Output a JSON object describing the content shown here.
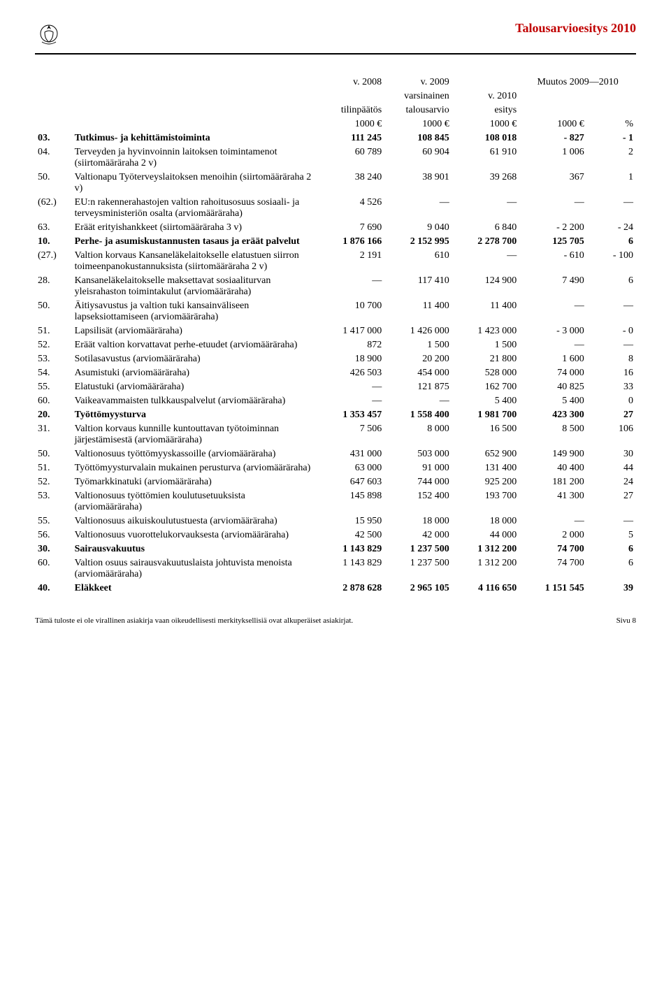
{
  "header": {
    "title": "Talousarvioesitys 2010",
    "title_color": "#c00000"
  },
  "table": {
    "col_headers": {
      "c1": [
        "v. 2008",
        "tilinpäätös",
        "1000 €"
      ],
      "c2": [
        "v. 2009",
        "varsinainen",
        "talousarvio",
        "1000 €"
      ],
      "c3": [
        "v. 2010",
        "esitys",
        "1000 €"
      ],
      "c4": [
        "Muutos 2009—2010"
      ],
      "c4a": "1000 €",
      "c4b": "%"
    },
    "rows": [
      {
        "code": "03.",
        "desc": "Tutkimus- ja kehittämistoiminta",
        "v": [
          "111 245",
          "108 845",
          "108 018",
          "- 827",
          "- 1"
        ],
        "bold": true
      },
      {
        "code": "04.",
        "desc": "Terveyden ja hyvinvoinnin laitoksen toimintamenot (siirtomääräraha 2 v)",
        "v": [
          "60 789",
          "60 904",
          "61 910",
          "1 006",
          "2"
        ]
      },
      {
        "code": "50.",
        "desc": "Valtionapu Työterveyslaitoksen menoihin (siirtomääräraha 2 v)",
        "v": [
          "38 240",
          "38 901",
          "39 268",
          "367",
          "1"
        ]
      },
      {
        "code": "(62.)",
        "desc": "EU:n rakennerahastojen valtion rahoitusosuus sosiaali- ja terveysministeriön osalta (arviomääräraha)",
        "v": [
          "4 526",
          "—",
          "—",
          "—",
          "—"
        ]
      },
      {
        "code": "63.",
        "desc": "Eräät erityishankkeet (siirtomääräraha 3 v)",
        "v": [
          "7 690",
          "9 040",
          "6 840",
          "- 2 200",
          "- 24"
        ]
      },
      {
        "code": "10.",
        "desc": "Perhe- ja asumiskustannusten tasaus ja eräät palvelut",
        "v": [
          "1 876 166",
          "2 152 995",
          "2 278 700",
          "125 705",
          "6"
        ],
        "bold": true
      },
      {
        "code": "(27.)",
        "desc": "Valtion korvaus Kansaneläkelaitokselle elatustuen siirron toimeenpanokustannuksista (siirtomääräraha 2 v)",
        "v": [
          "2 191",
          "610",
          "—",
          "- 610",
          "- 100"
        ]
      },
      {
        "code": "28.",
        "desc": "Kansaneläkelaitokselle maksettavat sosiaaliturvan yleisrahaston toimintakulut (arviomääräraha)",
        "v": [
          "—",
          "117 410",
          "124 900",
          "7 490",
          "6"
        ]
      },
      {
        "code": "50.",
        "desc": "Äitiysavustus ja valtion tuki kansainväliseen lapseksiottamiseen (arviomääräraha)",
        "v": [
          "10 700",
          "11 400",
          "11 400",
          "—",
          "—"
        ]
      },
      {
        "code": "51.",
        "desc": "Lapsilisät (arviomääräraha)",
        "v": [
          "1 417 000",
          "1 426 000",
          "1 423 000",
          "- 3 000",
          "- 0"
        ]
      },
      {
        "code": "52.",
        "desc": "Eräät valtion korvattavat perhe-etuudet (arviomääräraha)",
        "v": [
          "872",
          "1 500",
          "1 500",
          "—",
          "—"
        ]
      },
      {
        "code": "53.",
        "desc": "Sotilasavustus (arviomääräraha)",
        "v": [
          "18 900",
          "20 200",
          "21 800",
          "1 600",
          "8"
        ]
      },
      {
        "code": "54.",
        "desc": "Asumistuki (arviomääräraha)",
        "v": [
          "426 503",
          "454 000",
          "528 000",
          "74 000",
          "16"
        ]
      },
      {
        "code": "55.",
        "desc": "Elatustuki (arviomääräraha)",
        "v": [
          "—",
          "121 875",
          "162 700",
          "40 825",
          "33"
        ]
      },
      {
        "code": "60.",
        "desc": "Vaikeavammaisten tulkkauspalvelut (arviomääräraha)",
        "v": [
          "—",
          "—",
          "5 400",
          "5 400",
          "0"
        ]
      },
      {
        "code": "20.",
        "desc": "Työttömyysturva",
        "v": [
          "1 353 457",
          "1 558 400",
          "1 981 700",
          "423 300",
          "27"
        ],
        "bold": true
      },
      {
        "code": "31.",
        "desc": "Valtion korvaus kunnille kuntouttavan työtoiminnan järjestämisestä (arviomääräraha)",
        "v": [
          "7 506",
          "8 000",
          "16 500",
          "8 500",
          "106"
        ]
      },
      {
        "code": "50.",
        "desc": "Valtionosuus työttömyyskassoille (arviomääräraha)",
        "v": [
          "431 000",
          "503 000",
          "652 900",
          "149 900",
          "30"
        ]
      },
      {
        "code": "51.",
        "desc": "Työttömyysturvalain mukainen perusturva (arviomääräraha)",
        "v": [
          "63 000",
          "91 000",
          "131 400",
          "40 400",
          "44"
        ]
      },
      {
        "code": "52.",
        "desc": "Työmarkkinatuki (arviomääräraha)",
        "v": [
          "647 603",
          "744 000",
          "925 200",
          "181 200",
          "24"
        ]
      },
      {
        "code": "53.",
        "desc": "Valtionosuus työttömien koulutusetuuksista (arviomääräraha)",
        "v": [
          "145 898",
          "152 400",
          "193 700",
          "41 300",
          "27"
        ]
      },
      {
        "code": "55.",
        "desc": "Valtionosuus aikuiskoulutustuesta (arviomääräraha)",
        "v": [
          "15 950",
          "18 000",
          "18 000",
          "—",
          "—"
        ]
      },
      {
        "code": "56.",
        "desc": "Valtionosuus vuorottelukorvauksesta (arviomääräraha)",
        "v": [
          "42 500",
          "42 000",
          "44 000",
          "2 000",
          "5"
        ]
      },
      {
        "code": "30.",
        "desc": "Sairausvakuutus",
        "v": [
          "1 143 829",
          "1 237 500",
          "1 312 200",
          "74 700",
          "6"
        ],
        "bold": true
      },
      {
        "code": "60.",
        "desc": "Valtion osuus sairausvakuutuslaista johtuvista menoista (arviomääräraha)",
        "v": [
          "1 143 829",
          "1 237 500",
          "1 312 200",
          "74 700",
          "6"
        ]
      },
      {
        "code": "40.",
        "desc": "Eläkkeet",
        "v": [
          "2 878 628",
          "2 965 105",
          "4 116 650",
          "1 151 545",
          "39"
        ],
        "bold": true
      }
    ]
  },
  "footer": {
    "left": "Tämä tuloste ei ole virallinen asiakirja vaan oikeudellisesti merkityksellisiä ovat alkuperäiset asiakirjat.",
    "right": "Sivu 8"
  }
}
